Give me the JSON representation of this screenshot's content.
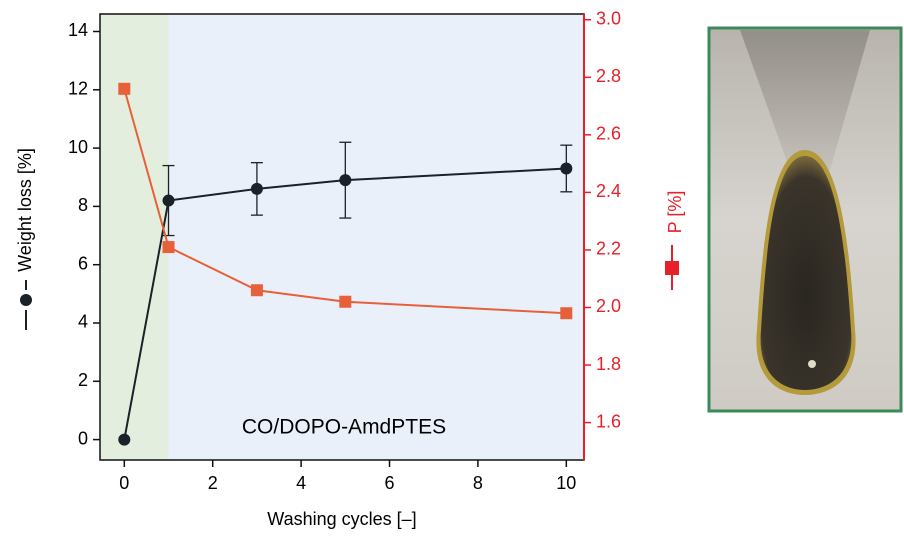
{
  "chart_data": {
    "type": "line",
    "x_label": "Washing cycles [–]",
    "y_label": "Weight loss [%]",
    "y2_label": "P [%]",
    "annotation": "CO/DOPO-AmdPTES",
    "x": [
      0,
      1,
      3,
      5,
      10
    ],
    "series": [
      {
        "name": "Weight loss [%]",
        "color": "#1a2128",
        "values": [
          0,
          8.2,
          8.6,
          8.9,
          9.3
        ],
        "errors": [
          null,
          1.2,
          0.9,
          1.3,
          0.8
        ],
        "marker": "circle"
      },
      {
        "name": "P [%]",
        "color": "#e8603a",
        "values": [
          2.76,
          2.21,
          2.06,
          2.02,
          1.98
        ],
        "axis": "y2",
        "marker": "square"
      }
    ],
    "xlim": [
      -0.55,
      10.4
    ],
    "xticks": [
      0,
      2,
      4,
      6,
      8,
      10
    ],
    "ylim": [
      -0.7,
      14.6
    ],
    "yticks": [
      0,
      2,
      4,
      6,
      8,
      10,
      12,
      14
    ],
    "y2lim": [
      1.47,
      3.02
    ],
    "y2ticks": [
      1.6,
      1.8,
      {
        "value": 2,
        "label": "2.0"
      },
      2.2,
      2.4,
      2.6,
      2.8,
      {
        "value": 3,
        "label": "3.0"
      }
    ],
    "y2_color": "#e8202a",
    "green_region_end": 1
  }
}
